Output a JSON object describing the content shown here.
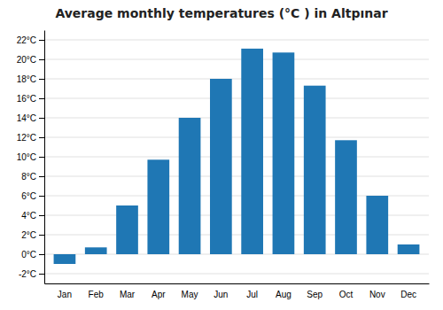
{
  "chart_data": {
    "type": "bar",
    "title": "Average monthly temperatures (°C ) in Altpınar",
    "categories": [
      "Jan",
      "Feb",
      "Mar",
      "Apr",
      "May",
      "Jun",
      "Jul",
      "Aug",
      "Sep",
      "Oct",
      "Nov",
      "Dec"
    ],
    "values": [
      -1.0,
      0.7,
      5.0,
      9.7,
      14.0,
      18.0,
      21.1,
      20.7,
      17.3,
      11.7,
      6.0,
      1.0
    ],
    "ylim": [
      -3,
      23
    ],
    "yticks": [
      {
        "value": -2,
        "label": "-2°C"
      },
      {
        "value": 0,
        "label": "0°C"
      },
      {
        "value": 2,
        "label": "2°C"
      },
      {
        "value": 4,
        "label": "4°C"
      },
      {
        "value": 6,
        "label": "6°C"
      },
      {
        "value": 8,
        "label": "8°C"
      },
      {
        "value": 10,
        "label": "10°C"
      },
      {
        "value": 12,
        "label": "12°C"
      },
      {
        "value": 14,
        "label": "14°C"
      },
      {
        "value": 16,
        "label": "16°C"
      },
      {
        "value": 18,
        "label": "18°C"
      },
      {
        "value": 20,
        "label": "20°C"
      },
      {
        "value": 22,
        "label": "22°C"
      }
    ],
    "grid": true
  }
}
